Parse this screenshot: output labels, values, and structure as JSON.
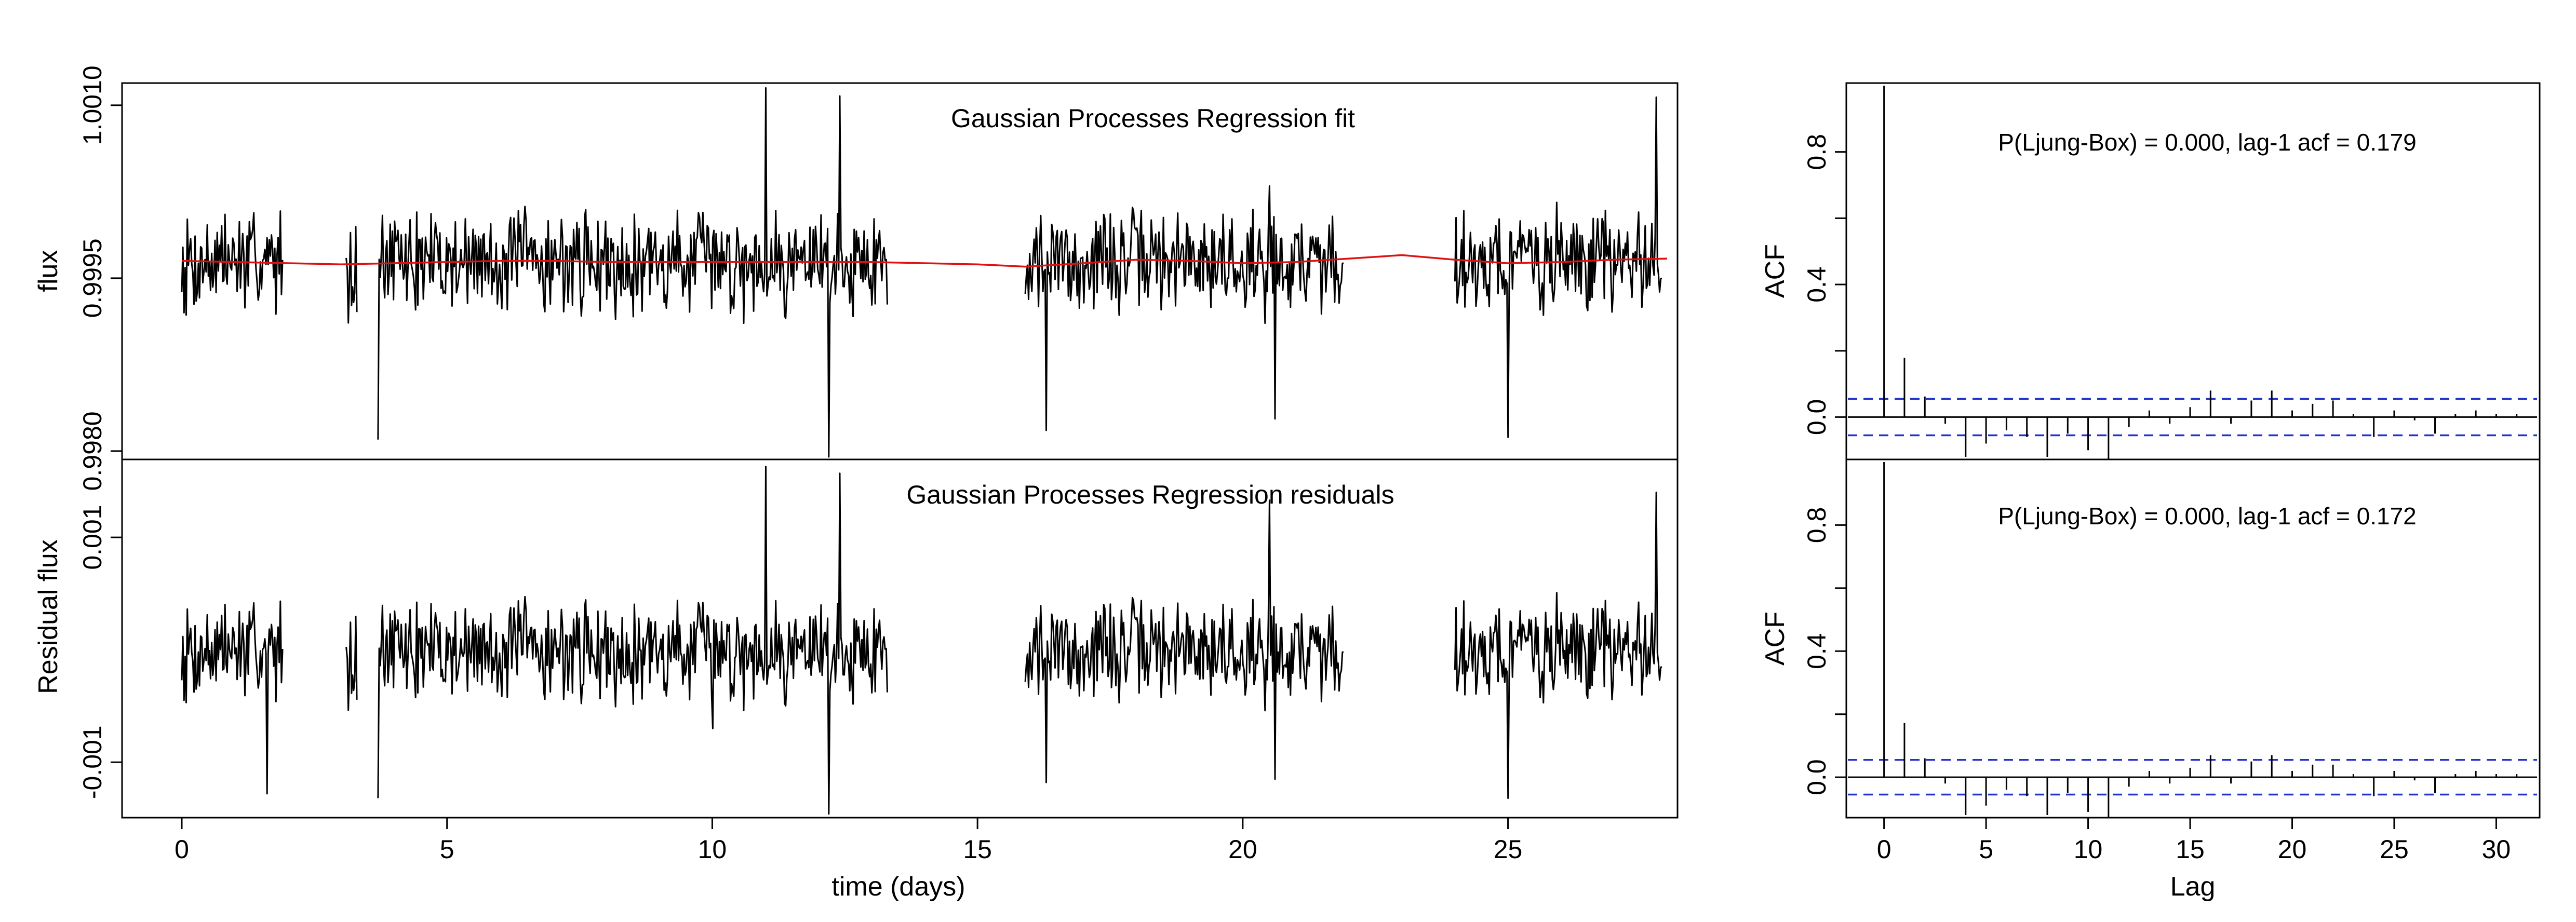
{
  "chart_data": [
    {
      "id": "fit",
      "type": "line",
      "title": "Gaussian Processes Regression fit",
      "xlabel": "",
      "ylabel": "flux",
      "xlim": [
        0,
        28
      ],
      "ylim": [
        0.99795,
        1.00117
      ],
      "yticks": [
        0.998,
        0.9995,
        1.001
      ],
      "ytick_labels": [
        "0.9980",
        "0.9995",
        "1.0010"
      ],
      "series": [
        {
          "kind": "observed",
          "segments": [
            {
              "x_start": 0.0,
              "x_end": 1.9
            },
            {
              "x_start": 3.1,
              "x_end": 3.3
            },
            {
              "x_start": 3.7,
              "x_end": 13.3
            },
            {
              "x_start": 15.9,
              "x_end": 21.9
            },
            {
              "x_start": 24.0,
              "x_end": 27.9
            }
          ],
          "baseline": 0.99965,
          "spikes": [
            [
              1.6,
              0.99985
            ],
            [
              3.7,
              0.9981
            ],
            [
              10.0,
              0.99985
            ],
            [
              11.0,
              1.00115
            ],
            [
              12.2,
              0.99795
            ],
            [
              12.4,
              1.00108
            ],
            [
              16.3,
              0.99818
            ],
            [
              20.5,
              1.0003
            ],
            [
              20.6,
              0.99828
            ],
            [
              25.0,
              0.99812
            ],
            [
              27.8,
              1.00107
            ]
          ]
        },
        {
          "kind": "fit",
          "color": "#e01010",
          "x": [
            0,
            1,
            2,
            3,
            4,
            5,
            6,
            7,
            8,
            9,
            10,
            11,
            12,
            13,
            14,
            15,
            15.9,
            17,
            18,
            19,
            20,
            21,
            22,
            23,
            24,
            25,
            26,
            27,
            28
          ],
          "y": [
            0.99965,
            0.99964,
            0.99963,
            0.99962,
            0.99963,
            0.99964,
            0.99965,
            0.99965,
            0.99964,
            0.99964,
            0.99964,
            0.99964,
            0.99964,
            0.99964,
            0.99963,
            0.99962,
            0.9996,
            0.99963,
            0.99966,
            0.99965,
            0.99963,
            0.99964,
            0.99967,
            0.9997,
            0.99966,
            0.99963,
            0.99964,
            0.99966,
            0.99967
          ]
        }
      ]
    },
    {
      "id": "residuals",
      "type": "line",
      "title": "Gaussian Processes Regression residuals",
      "xlabel": "time (days)",
      "ylabel": "Residual flux",
      "xlim": [
        0,
        28
      ],
      "ylim": [
        -0.00147,
        0.00167
      ],
      "xticks": [
        0,
        5,
        10,
        15,
        20,
        25
      ],
      "xtick_labels": [
        "0",
        "5",
        "10",
        "15",
        "20",
        "25"
      ],
      "yticks": [
        -0.001,
        0.001
      ],
      "ytick_labels": [
        "-0.001",
        "0.001"
      ],
      "series": [
        {
          "kind": "residual",
          "segments": [
            {
              "x_start": 0.0,
              "x_end": 1.9
            },
            {
              "x_start": 3.1,
              "x_end": 3.3
            },
            {
              "x_start": 3.7,
              "x_end": 13.3
            },
            {
              "x_start": 15.9,
              "x_end": 21.9
            },
            {
              "x_start": 24.0,
              "x_end": 27.9
            }
          ],
          "baseline": 0.0,
          "spikes": [
            [
              1.6,
              -0.00128
            ],
            [
              3.7,
              -0.00132
            ],
            [
              10.0,
              -0.0007
            ],
            [
              11.0,
              0.00163
            ],
            [
              12.2,
              -0.00146
            ],
            [
              12.4,
              0.00157
            ],
            [
              16.3,
              -0.00118
            ],
            [
              20.5,
              0.00133
            ],
            [
              20.6,
              -0.00115
            ],
            [
              25.0,
              -0.00132
            ],
            [
              27.8,
              0.0014
            ]
          ]
        }
      ]
    },
    {
      "id": "acf-fit",
      "type": "bar",
      "annotation": "P(Ljung-Box) = 0.000, lag-1 acf = 0.179",
      "xlabel": "",
      "ylabel": "ACF",
      "xlim": [
        -0.5,
        32
      ],
      "ylim": [
        -0.12,
        1.0
      ],
      "yticks": [
        0.0,
        0.4,
        0.8
      ],
      "ytick_labels": [
        "0.0",
        "0.4",
        "0.8"
      ],
      "ci": 0.055,
      "lags": [
        0,
        1,
        2,
        3,
        4,
        5,
        6,
        7,
        8,
        9,
        10,
        11,
        12,
        13,
        14,
        15,
        16,
        17,
        18,
        19,
        20,
        21,
        22,
        23,
        24,
        25,
        26,
        27,
        28,
        29,
        30,
        31
      ],
      "values": [
        1.0,
        0.179,
        0.062,
        -0.02,
        -0.12,
        -0.08,
        -0.04,
        -0.06,
        -0.12,
        -0.05,
        -0.1,
        -0.13,
        -0.03,
        0.02,
        -0.02,
        0.03,
        0.08,
        -0.02,
        0.05,
        0.08,
        0.02,
        0.04,
        0.05,
        0.01,
        -0.06,
        0.02,
        -0.01,
        -0.05,
        0.01,
        0.02,
        0.01,
        0.01
      ]
    },
    {
      "id": "acf-residuals",
      "type": "bar",
      "annotation": "P(Ljung-Box) = 0.000, lag-1 acf = 0.172",
      "xlabel": "Lag",
      "ylabel": "ACF",
      "xlim": [
        -0.5,
        32
      ],
      "ylim": [
        -0.12,
        1.0
      ],
      "xticks": [
        0,
        5,
        10,
        15,
        20,
        25,
        30
      ],
      "xtick_labels": [
        "0",
        "5",
        "10",
        "15",
        "20",
        "25",
        "30"
      ],
      "yticks": [
        0.0,
        0.4,
        0.8
      ],
      "ytick_labels": [
        "0.0",
        "0.4",
        "0.8"
      ],
      "ci": 0.055,
      "lags": [
        0,
        1,
        2,
        3,
        4,
        5,
        6,
        7,
        8,
        9,
        10,
        11,
        12,
        13,
        14,
        15,
        16,
        17,
        18,
        19,
        20,
        21,
        22,
        23,
        24,
        25,
        26,
        27,
        28,
        29,
        30,
        31
      ],
      "values": [
        1.0,
        0.172,
        0.06,
        -0.02,
        -0.12,
        -0.09,
        -0.04,
        -0.06,
        -0.12,
        -0.05,
        -0.11,
        -0.13,
        -0.03,
        0.02,
        -0.02,
        0.03,
        0.07,
        -0.02,
        0.05,
        0.07,
        0.02,
        0.04,
        0.04,
        0.01,
        -0.06,
        0.02,
        -0.01,
        -0.05,
        0.01,
        0.02,
        0.01,
        0.01
      ]
    }
  ]
}
